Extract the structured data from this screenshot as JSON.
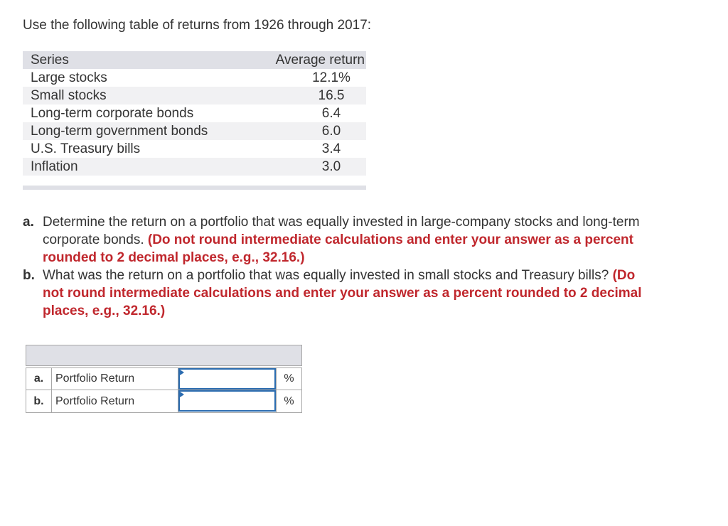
{
  "intro": "Use the following table of returns from 1926 through 2017:",
  "returns_table": {
    "headers": {
      "series": "Series",
      "average": "Average return"
    },
    "rows": [
      {
        "series": "Large stocks",
        "value": "12.1%"
      },
      {
        "series": "Small stocks",
        "value": "16.5"
      },
      {
        "series": "Long-term corporate bonds",
        "value": "6.4"
      },
      {
        "series": "Long-term government bonds",
        "value": "6.0"
      },
      {
        "series": "U.S. Treasury bills",
        "value": "3.4"
      },
      {
        "series": "Inflation",
        "value": "3.0"
      }
    ]
  },
  "questions": [
    {
      "letter": "a.",
      "text": "Determine the return on a portfolio that was equally invested in large-company stocks and long-term corporate bonds.",
      "note": "(Do not round intermediate calculations and enter your answer as a percent rounded to 2 decimal places, e.g., 32.16.)"
    },
    {
      "letter": "b.",
      "text": "What was the return on a portfolio that was equally invested in small stocks and Treasury bills?",
      "note": "(Do not round intermediate calculations and enter your answer as a percent rounded to 2 decimal places, e.g., 32.16.)"
    }
  ],
  "answers": [
    {
      "letter": "a.",
      "label": "Portfolio Return",
      "value": "",
      "unit": "%"
    },
    {
      "letter": "b.",
      "label": "Portfolio Return",
      "value": "",
      "unit": "%"
    }
  ]
}
